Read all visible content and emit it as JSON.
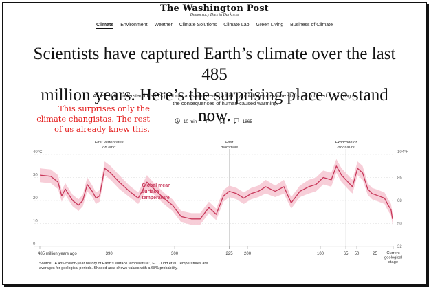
{
  "masthead": {
    "logo": "The Washington Post",
    "tagline": "Democracy Dies in Darkness"
  },
  "nav": {
    "items": [
      "Climate",
      "Environment",
      "Weather",
      "Climate Solutions",
      "Climate Lab",
      "Green Living",
      "Business of Climate"
    ],
    "active": "Climate"
  },
  "article": {
    "headline_line1": "Scientists have captured Earth’s climate over the last 485",
    "headline_line2": "million years. Here’s the surprising place we stand now.",
    "dek_line1": "An effort to understand Earth’s past climates uncovered a history of wild temperature shifts and offered a warning on",
    "dek_line2": "the consequences of human-caused warming.",
    "read_time": "10 min",
    "comments": "1865"
  },
  "annotation": {
    "line1": "This surprises only the",
    "line2": "climate changistas. The rest",
    "line3": "of us already knew this."
  },
  "colors": {
    "accent": "#c0392b",
    "series": "#c8385a",
    "band": "#f6c9d4",
    "annotation": "#e41c1c"
  },
  "icons": [
    "clock-icon",
    "share-icon",
    "bookmark-icon",
    "comment-icon"
  ],
  "chart_data": {
    "type": "line",
    "x_reversed": true,
    "x_unit": "million years ago",
    "xlim": [
      485,
      0
    ],
    "ylim_c": [
      0,
      40
    ],
    "y_ticks_c": [
      {
        "v": 40,
        "l": "40°C"
      },
      {
        "v": 30,
        "l": "30"
      },
      {
        "v": 20,
        "l": "20"
      },
      {
        "v": 10,
        "l": "10"
      },
      {
        "v": 0,
        "l": "0"
      }
    ],
    "y_ticks_f": [
      {
        "v": 40,
        "l": "104°F"
      },
      {
        "v": 30,
        "l": "86"
      },
      {
        "v": 20,
        "l": "68"
      },
      {
        "v": 10,
        "l": "50"
      },
      {
        "v": 0,
        "l": "32"
      }
    ],
    "x_ticks": [
      {
        "v": 485,
        "l": "485 million years ago"
      },
      {
        "v": 390,
        "l": "390"
      },
      {
        "v": 300,
        "l": "300"
      },
      {
        "v": 225,
        "l": "225"
      },
      {
        "v": 200,
        "l": "200"
      },
      {
        "v": 100,
        "l": "100"
      },
      {
        "v": 65,
        "l": "65"
      },
      {
        "v": 50,
        "l": "50"
      },
      {
        "v": 25,
        "l": "25"
      },
      {
        "v": 0,
        "l": "Current geological stage"
      }
    ],
    "events": [
      {
        "v": 390,
        "l1": "First vertebrates",
        "l2": "on land"
      },
      {
        "v": 225,
        "l1": "First",
        "l2": "mammals"
      },
      {
        "v": 65,
        "l1": "Extinction of",
        "l2": "dinosaurs"
      }
    ],
    "series": [
      {
        "name": "Global mean surface temperature",
        "points": [
          [
            485,
            31
          ],
          [
            470,
            30.5
          ],
          [
            460,
            28
          ],
          [
            455,
            22
          ],
          [
            450,
            25
          ],
          [
            440,
            20
          ],
          [
            432,
            18
          ],
          [
            426,
            20
          ],
          [
            420,
            27
          ],
          [
            413,
            24
          ],
          [
            408,
            21
          ],
          [
            403,
            22
          ],
          [
            396,
            34
          ],
          [
            388,
            32
          ],
          [
            376,
            28
          ],
          [
            362,
            24
          ],
          [
            350,
            21
          ],
          [
            338,
            28
          ],
          [
            328,
            25
          ],
          [
            315,
            21
          ],
          [
            303,
            18
          ],
          [
            291,
            13
          ],
          [
            277,
            12
          ],
          [
            265,
            12
          ],
          [
            253,
            17
          ],
          [
            243,
            14
          ],
          [
            233,
            22
          ],
          [
            225,
            24
          ],
          [
            215,
            23
          ],
          [
            205,
            21
          ],
          [
            195,
            23
          ],
          [
            185,
            24
          ],
          [
            175,
            26
          ],
          [
            162,
            24
          ],
          [
            150,
            26
          ],
          [
            140,
            19
          ],
          [
            128,
            24
          ],
          [
            116,
            26
          ],
          [
            106,
            27
          ],
          [
            96,
            30
          ],
          [
            85,
            29
          ],
          [
            78,
            35
          ],
          [
            71,
            31
          ],
          [
            62,
            28
          ],
          [
            56,
            26
          ],
          [
            49,
            34
          ],
          [
            42,
            32
          ],
          [
            35,
            25
          ],
          [
            29,
            23
          ],
          [
            20,
            22
          ],
          [
            12,
            21
          ],
          [
            7,
            18
          ],
          [
            3,
            16
          ],
          [
            1,
            12
          ]
        ],
        "band": [
          8,
          3.5
        ]
      }
    ],
    "labels": [
      "Global mean",
      "surface",
      "temperature"
    ]
  },
  "source": {
    "line1": "Source: “A 485-million-year history of Earth’s surface temperature”, E.J. Judd et al. Temperatures are",
    "line2": "averages for geological periods. Shaded area shows values with a 68% probability."
  }
}
